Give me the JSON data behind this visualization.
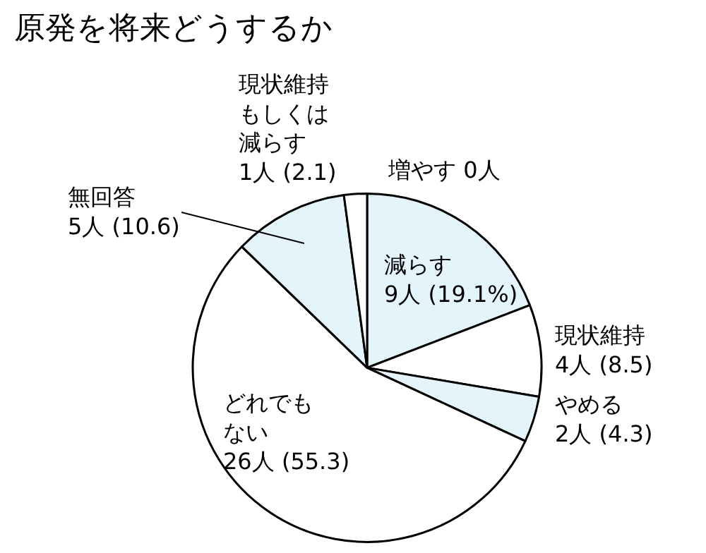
{
  "chart_data": {
    "type": "pie",
    "title": "原発を将来どうするか",
    "categories": [
      "増やす",
      "減らす",
      "現状維持",
      "やめる",
      "どれでもない",
      "無回答",
      "現状維持もしくは減らす"
    ],
    "values": [
      0,
      9,
      4,
      2,
      26,
      5,
      1
    ],
    "value_labels": [
      "0人",
      "9人 (19.1%)",
      "4人 (8.5)",
      "2人 (4.3)",
      "26人 (55.3)",
      "5人 (10.6)",
      "1人 (2.1)"
    ],
    "colors": [
      "#ffffff",
      "#e4f4fb",
      "#ffffff",
      "#e4f4fb",
      "#ffffff",
      "#e4f4fb",
      "#ffffff"
    ],
    "legend": false
  }
}
